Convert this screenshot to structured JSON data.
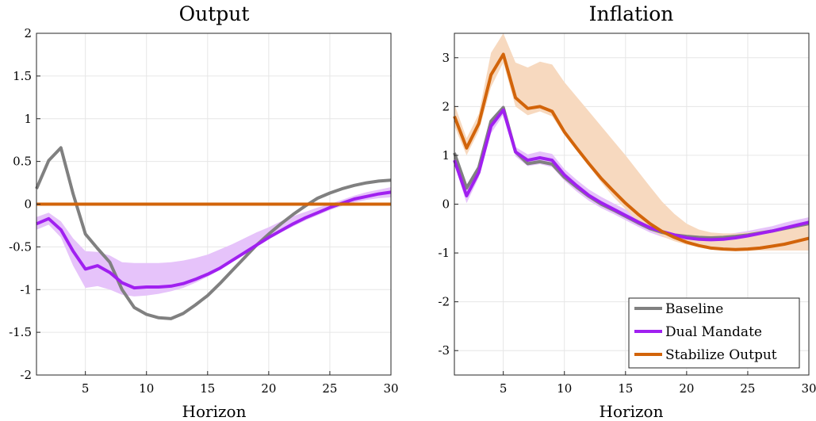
{
  "colors": {
    "baseline": "#808080",
    "dual_mandate": "#a020f0",
    "stabilize_output": "#d2640a",
    "dual_band": "#e6c3fa",
    "stabilize_band": "#f7d9bf"
  },
  "legend": {
    "placement": "bottom-right of right panel",
    "items": [
      "Baseline",
      "Dual Mandate",
      "Stabilize Output"
    ]
  },
  "chart_data": [
    {
      "type": "line",
      "title": "Output",
      "xlabel": "Horizon",
      "ylabel": "",
      "xlim": [
        1,
        30
      ],
      "ylim": [
        -2,
        2
      ],
      "grid": true,
      "xticks": [
        5,
        10,
        15,
        20,
        25,
        30
      ],
      "yticks": [
        -2,
        -1.5,
        -1,
        -0.5,
        0,
        0.5,
        1,
        1.5,
        2
      ],
      "ytick_labels": [
        "-2",
        "-1.5",
        "-1",
        "-0.5",
        "0",
        "0.5",
        "1",
        "1.5",
        "2"
      ],
      "x": [
        1,
        2,
        3,
        4,
        5,
        6,
        7,
        8,
        9,
        10,
        11,
        12,
        13,
        14,
        15,
        16,
        17,
        18,
        19,
        20,
        21,
        22,
        23,
        24,
        25,
        26,
        27,
        28,
        29,
        30
      ],
      "series": [
        {
          "name": "Baseline",
          "color_key": "baseline",
          "values": [
            0.18,
            0.51,
            0.66,
            0.12,
            -0.35,
            -0.52,
            -0.68,
            -1.0,
            -1.21,
            -1.29,
            -1.33,
            -1.34,
            -1.28,
            -1.18,
            -1.07,
            -0.93,
            -0.78,
            -0.63,
            -0.48,
            -0.35,
            -0.23,
            -0.12,
            -0.02,
            0.07,
            0.13,
            0.18,
            0.22,
            0.25,
            0.27,
            0.28
          ]
        },
        {
          "name": "Dual Mandate",
          "color_key": "dual_mandate",
          "values": [
            -0.23,
            -0.17,
            -0.3,
            -0.55,
            -0.76,
            -0.72,
            -0.8,
            -0.92,
            -0.98,
            -0.97,
            -0.97,
            -0.96,
            -0.93,
            -0.88,
            -0.82,
            -0.75,
            -0.66,
            -0.57,
            -0.48,
            -0.39,
            -0.31,
            -0.23,
            -0.16,
            -0.1,
            -0.04,
            0.01,
            0.06,
            0.09,
            0.12,
            0.14
          ],
          "band_color_key": "dual_band",
          "band_lower": [
            -0.3,
            -0.24,
            -0.39,
            -0.72,
            -0.98,
            -0.96,
            -1.0,
            -1.06,
            -1.08,
            -1.07,
            -1.05,
            -1.02,
            -0.98,
            -0.92,
            -0.85,
            -0.77,
            -0.68,
            -0.59,
            -0.5,
            -0.41,
            -0.33,
            -0.26,
            -0.19,
            -0.13,
            -0.07,
            -0.02,
            0.02,
            0.05,
            0.07,
            0.08
          ],
          "band_upper": [
            -0.15,
            -0.1,
            -0.2,
            -0.4,
            -0.55,
            -0.56,
            -0.6,
            -0.68,
            -0.69,
            -0.69,
            -0.69,
            -0.68,
            -0.66,
            -0.63,
            -0.59,
            -0.53,
            -0.47,
            -0.4,
            -0.33,
            -0.27,
            -0.2,
            -0.14,
            -0.09,
            -0.04,
            0.0,
            0.05,
            0.1,
            0.14,
            0.17,
            0.2
          ]
        },
        {
          "name": "Stabilize Output",
          "color_key": "stabilize_output",
          "values": [
            0,
            0,
            0,
            0,
            0,
            0,
            0,
            0,
            0,
            0,
            0,
            0,
            0,
            0,
            0,
            0,
            0,
            0,
            0,
            0,
            0,
            0,
            0,
            0,
            0,
            0,
            0,
            0,
            0,
            0
          ]
        }
      ]
    },
    {
      "type": "line",
      "title": "Inflation",
      "xlabel": "Horizon",
      "ylabel": "",
      "xlim": [
        1,
        30
      ],
      "ylim": [
        -3.5,
        3.5
      ],
      "grid": true,
      "xticks": [
        5,
        10,
        15,
        20,
        25,
        30
      ],
      "yticks": [
        -3,
        -2,
        -1,
        0,
        1,
        2,
        3
      ],
      "ytick_labels": [
        "-3",
        "-2",
        "-1",
        "0",
        "1",
        "2",
        "3"
      ],
      "x": [
        1,
        2,
        3,
        4,
        5,
        6,
        7,
        8,
        9,
        10,
        11,
        12,
        13,
        14,
        15,
        16,
        17,
        18,
        19,
        20,
        21,
        22,
        23,
        24,
        25,
        26,
        27,
        28,
        29,
        30
      ],
      "series": [
        {
          "name": "Baseline",
          "color_key": "baseline",
          "values": [
            1.05,
            0.33,
            0.75,
            1.7,
            1.98,
            1.07,
            0.83,
            0.87,
            0.82,
            0.55,
            0.35,
            0.16,
            0.0,
            -0.12,
            -0.25,
            -0.38,
            -0.5,
            -0.58,
            -0.63,
            -0.66,
            -0.68,
            -0.69,
            -0.68,
            -0.66,
            -0.63,
            -0.59,
            -0.55,
            -0.5,
            -0.45,
            -0.4
          ]
        },
        {
          "name": "Dual Mandate",
          "color_key": "dual_mandate",
          "values": [
            0.9,
            0.17,
            0.65,
            1.6,
            1.93,
            1.07,
            0.9,
            0.95,
            0.9,
            0.6,
            0.38,
            0.18,
            0.03,
            -0.1,
            -0.23,
            -0.36,
            -0.48,
            -0.56,
            -0.63,
            -0.69,
            -0.72,
            -0.73,
            -0.72,
            -0.69,
            -0.65,
            -0.6,
            -0.55,
            -0.49,
            -0.43,
            -0.37
          ],
          "band_color_key": "dual_band",
          "band_lower": [
            0.82,
            0.02,
            0.55,
            1.45,
            1.83,
            0.98,
            0.78,
            0.82,
            0.76,
            0.48,
            0.26,
            0.07,
            -0.08,
            -0.2,
            -0.33,
            -0.46,
            -0.58,
            -0.67,
            -0.74,
            -0.8,
            -0.82,
            -0.82,
            -0.81,
            -0.78,
            -0.74,
            -0.69,
            -0.63,
            -0.57,
            -0.51,
            -0.46
          ],
          "band_upper": [
            1.0,
            0.3,
            0.78,
            1.75,
            2.03,
            1.17,
            1.02,
            1.08,
            1.03,
            0.72,
            0.5,
            0.3,
            0.15,
            0.02,
            -0.11,
            -0.25,
            -0.37,
            -0.46,
            -0.53,
            -0.59,
            -0.62,
            -0.63,
            -0.62,
            -0.59,
            -0.55,
            -0.5,
            -0.45,
            -0.38,
            -0.32,
            -0.27
          ]
        },
        {
          "name": "Stabilize Output",
          "color_key": "stabilize_output",
          "values": [
            1.8,
            1.15,
            1.65,
            2.65,
            3.07,
            2.18,
            1.96,
            2.0,
            1.9,
            1.48,
            1.15,
            0.83,
            0.53,
            0.27,
            0.02,
            -0.2,
            -0.4,
            -0.56,
            -0.68,
            -0.78,
            -0.85,
            -0.9,
            -0.92,
            -0.93,
            -0.92,
            -0.9,
            -0.86,
            -0.82,
            -0.76,
            -0.7
          ],
          "band_color_key": "stabilize_band",
          "band_lower": [
            1.6,
            1.0,
            1.5,
            2.4,
            2.9,
            2.0,
            1.82,
            1.9,
            1.8,
            1.42,
            1.1,
            0.78,
            0.45,
            0.15,
            -0.1,
            -0.35,
            -0.52,
            -0.66,
            -0.76,
            -0.83,
            -0.88,
            -0.93,
            -0.95,
            -0.96,
            -0.96,
            -0.95,
            -0.95,
            -0.95,
            -0.95,
            -0.95
          ],
          "band_upper": [
            2.05,
            1.35,
            1.85,
            3.1,
            3.5,
            2.9,
            2.8,
            2.92,
            2.86,
            2.5,
            2.2,
            1.9,
            1.6,
            1.3,
            1.0,
            0.68,
            0.36,
            0.05,
            -0.2,
            -0.4,
            -0.52,
            -0.58,
            -0.6,
            -0.6,
            -0.58,
            -0.55,
            -0.52,
            -0.48,
            -0.44,
            -0.4
          ]
        }
      ]
    }
  ]
}
